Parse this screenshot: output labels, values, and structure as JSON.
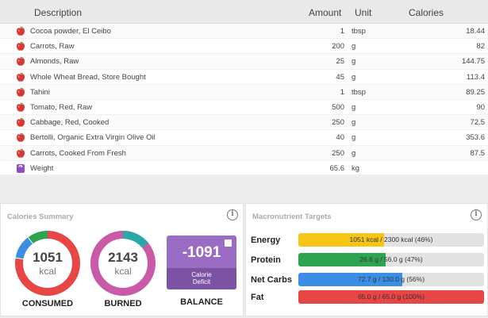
{
  "diary": {
    "columns": {
      "description": "Description",
      "amount": "Amount",
      "unit": "Unit",
      "calories": "Calories"
    },
    "rows": [
      {
        "icon": "apple-icon",
        "description": "Cocoa powder, El Ceibo",
        "amount": "1",
        "unit": "tbsp",
        "calories": "18.44"
      },
      {
        "icon": "apple-icon",
        "description": "Carrots, Raw",
        "amount": "200",
        "unit": "g",
        "calories": "82"
      },
      {
        "icon": "apple-icon",
        "description": "Almonds, Raw",
        "amount": "25",
        "unit": "g",
        "calories": "144.75"
      },
      {
        "icon": "apple-icon",
        "description": "Whole Wheat Bread, Store Bought",
        "amount": "45",
        "unit": "g",
        "calories": "113.4"
      },
      {
        "icon": "apple-icon",
        "description": "Tahini",
        "amount": "1",
        "unit": "tbsp",
        "calories": "89.25"
      },
      {
        "icon": "apple-icon",
        "description": "Tomato, Red, Raw",
        "amount": "500",
        "unit": "g",
        "calories": "90"
      },
      {
        "icon": "apple-icon",
        "description": "Cabbage, Red, Cooked",
        "amount": "250",
        "unit": "g",
        "calories": "72.5"
      },
      {
        "icon": "apple-icon",
        "description": "Bertolli, Organic Extra Virgin Olive Oil",
        "amount": "40",
        "unit": "g",
        "calories": "353.6"
      },
      {
        "icon": "apple-icon",
        "description": "Carrots, Cooked From Fresh",
        "amount": "250",
        "unit": "g",
        "calories": "87.5"
      },
      {
        "icon": "scale-icon",
        "description": "Weight",
        "amount": "65.6",
        "unit": "kg",
        "calories": ""
      }
    ]
  },
  "summary": {
    "title": "Calories Summary",
    "consumed": {
      "value": "1051",
      "unit": "kcal",
      "label": "CONSUMED"
    },
    "burned": {
      "value": "2143",
      "unit": "kcal",
      "label": "BURNED"
    },
    "balance": {
      "value": "-1091",
      "sub1": "Calorie",
      "sub2": "Deficit",
      "label": "BALANCE"
    }
  },
  "targets": {
    "title": "Macronutrient Targets",
    "items": [
      {
        "label": "Energy",
        "text": "1051 kcal / 2300 kcal (46%)",
        "percent": 46,
        "color": "#f5c518"
      },
      {
        "label": "Protein",
        "text": "26.6 g / 56.0 g (47%)",
        "percent": 47,
        "color": "#2ea44f"
      },
      {
        "label": "Net Carbs",
        "text": "72.7 g / 130.0 g (56%)",
        "percent": 56,
        "color": "#3a8ee6"
      },
      {
        "label": "Fat",
        "text": "65.0 g / 65.0 g (100%)",
        "percent": 100,
        "color": "#e84545"
      }
    ]
  },
  "colors": {
    "consumed_ring": [
      "#e84545",
      "#3a8ee6",
      "#2ea44f"
    ],
    "burned_ring": [
      "#c85aa8",
      "#2aa7a7"
    ],
    "balance_bg": "#9b6cc3"
  }
}
